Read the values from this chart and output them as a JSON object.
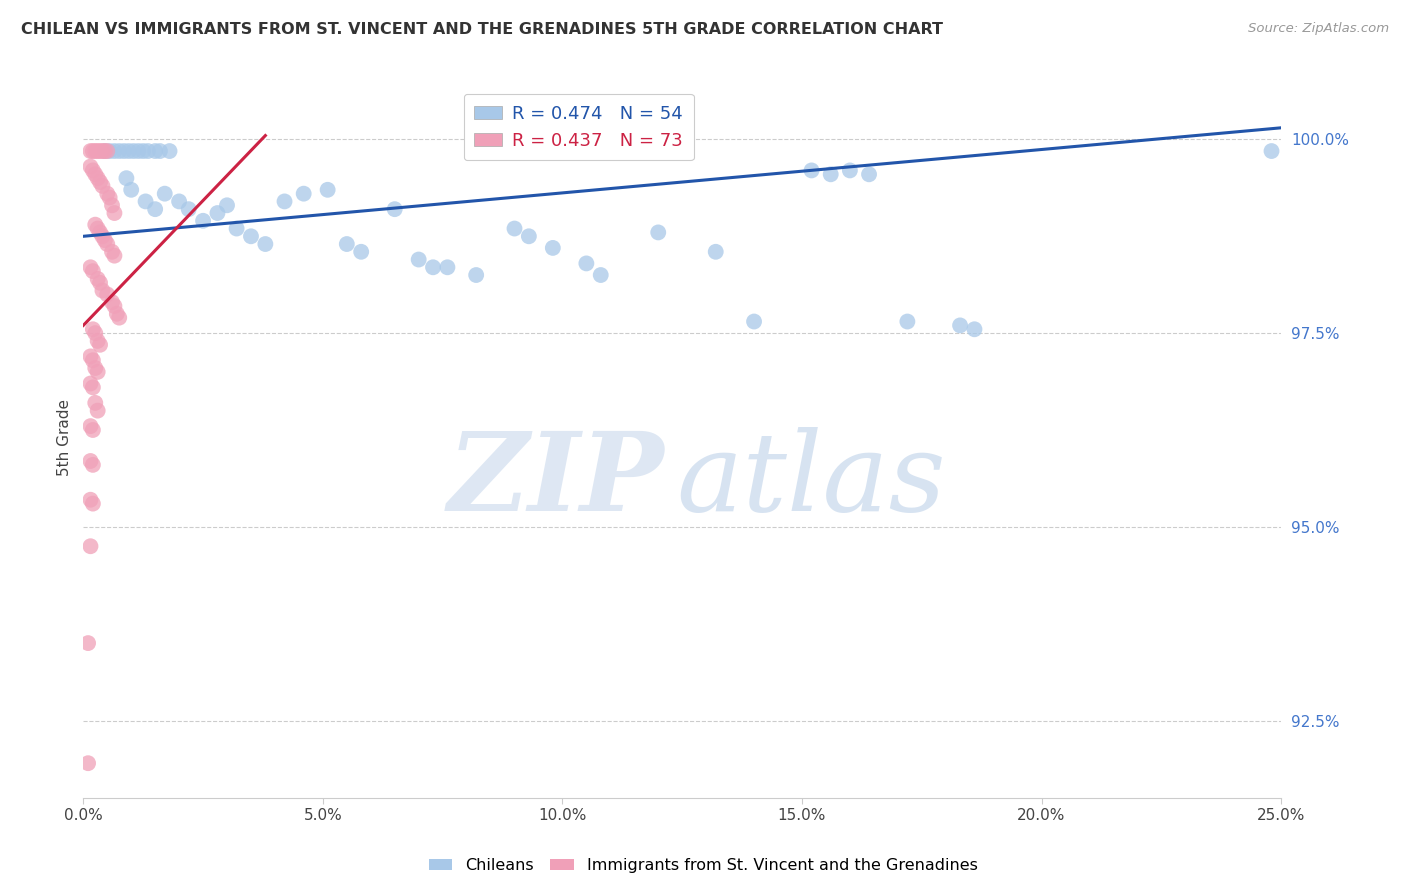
{
  "title": "CHILEAN VS IMMIGRANTS FROM ST. VINCENT AND THE GRENADINES 5TH GRADE CORRELATION CHART",
  "source": "Source: ZipAtlas.com",
  "ylabel": "5th Grade",
  "xlim": [
    0.0,
    25.0
  ],
  "ylim": [
    91.5,
    100.8
  ],
  "yticks": [
    92.5,
    95.0,
    97.5,
    100.0
  ],
  "xticks": [
    0.0,
    5.0,
    10.0,
    15.0,
    20.0,
    25.0
  ],
  "xtick_labels": [
    "0.0%",
    "5.0%",
    "10.0%",
    "15.0%",
    "20.0%",
    "25.0%"
  ],
  "ytick_labels": [
    "92.5%",
    "95.0%",
    "97.5%",
    "100.0%"
  ],
  "blue_r": 0.474,
  "blue_n": 54,
  "pink_r": 0.437,
  "pink_n": 73,
  "blue_color": "#a8c8e8",
  "pink_color": "#f0a0b8",
  "blue_line_color": "#2255aa",
  "pink_line_color": "#cc2244",
  "legend_label_blue": "Chileans",
  "legend_label_pink": "Immigrants from St. Vincent and the Grenadines",
  "blue_line": [
    [
      0.0,
      98.75
    ],
    [
      25.0,
      100.15
    ]
  ],
  "pink_line": [
    [
      0.0,
      97.6
    ],
    [
      3.8,
      100.05
    ]
  ],
  "blue_points": [
    [
      0.45,
      99.85
    ],
    [
      0.55,
      99.85
    ],
    [
      0.65,
      99.85
    ],
    [
      0.75,
      99.85
    ],
    [
      0.85,
      99.85
    ],
    [
      0.95,
      99.85
    ],
    [
      1.05,
      99.85
    ],
    [
      1.15,
      99.85
    ],
    [
      1.25,
      99.85
    ],
    [
      1.35,
      99.85
    ],
    [
      1.5,
      99.85
    ],
    [
      1.6,
      99.85
    ],
    [
      1.8,
      99.85
    ],
    [
      0.9,
      99.5
    ],
    [
      1.0,
      99.35
    ],
    [
      1.3,
      99.2
    ],
    [
      1.5,
      99.1
    ],
    [
      1.7,
      99.3
    ],
    [
      2.0,
      99.2
    ],
    [
      2.2,
      99.1
    ],
    [
      2.5,
      98.95
    ],
    [
      2.8,
      99.05
    ],
    [
      3.0,
      99.15
    ],
    [
      3.2,
      98.85
    ],
    [
      3.5,
      98.75
    ],
    [
      3.8,
      98.65
    ],
    [
      4.2,
      99.2
    ],
    [
      4.6,
      99.3
    ],
    [
      5.1,
      99.35
    ],
    [
      5.5,
      98.65
    ],
    [
      5.8,
      98.55
    ],
    [
      6.5,
      99.1
    ],
    [
      7.0,
      98.45
    ],
    [
      7.3,
      98.35
    ],
    [
      7.6,
      98.35
    ],
    [
      8.2,
      98.25
    ],
    [
      9.0,
      98.85
    ],
    [
      9.3,
      98.75
    ],
    [
      9.8,
      98.6
    ],
    [
      10.5,
      98.4
    ],
    [
      10.8,
      98.25
    ],
    [
      12.0,
      98.8
    ],
    [
      13.2,
      98.55
    ],
    [
      14.0,
      97.65
    ],
    [
      15.2,
      99.6
    ],
    [
      15.6,
      99.55
    ],
    [
      16.0,
      99.6
    ],
    [
      16.4,
      99.55
    ],
    [
      17.2,
      97.65
    ],
    [
      18.3,
      97.6
    ],
    [
      18.6,
      97.55
    ],
    [
      24.8,
      99.85
    ]
  ],
  "pink_points": [
    [
      0.15,
      99.85
    ],
    [
      0.2,
      99.85
    ],
    [
      0.25,
      99.85
    ],
    [
      0.3,
      99.85
    ],
    [
      0.35,
      99.85
    ],
    [
      0.4,
      99.85
    ],
    [
      0.45,
      99.85
    ],
    [
      0.5,
      99.85
    ],
    [
      0.15,
      99.65
    ],
    [
      0.2,
      99.6
    ],
    [
      0.25,
      99.55
    ],
    [
      0.3,
      99.5
    ],
    [
      0.35,
      99.45
    ],
    [
      0.4,
      99.4
    ],
    [
      0.5,
      99.3
    ],
    [
      0.55,
      99.25
    ],
    [
      0.6,
      99.15
    ],
    [
      0.65,
      99.05
    ],
    [
      0.25,
      98.9
    ],
    [
      0.3,
      98.85
    ],
    [
      0.35,
      98.8
    ],
    [
      0.4,
      98.75
    ],
    [
      0.45,
      98.7
    ],
    [
      0.5,
      98.65
    ],
    [
      0.6,
      98.55
    ],
    [
      0.65,
      98.5
    ],
    [
      0.15,
      98.35
    ],
    [
      0.2,
      98.3
    ],
    [
      0.3,
      98.2
    ],
    [
      0.35,
      98.15
    ],
    [
      0.4,
      98.05
    ],
    [
      0.5,
      98.0
    ],
    [
      0.6,
      97.9
    ],
    [
      0.65,
      97.85
    ],
    [
      0.7,
      97.75
    ],
    [
      0.75,
      97.7
    ],
    [
      0.2,
      97.55
    ],
    [
      0.25,
      97.5
    ],
    [
      0.3,
      97.4
    ],
    [
      0.35,
      97.35
    ],
    [
      0.15,
      97.2
    ],
    [
      0.2,
      97.15
    ],
    [
      0.25,
      97.05
    ],
    [
      0.3,
      97.0
    ],
    [
      0.15,
      96.85
    ],
    [
      0.2,
      96.8
    ],
    [
      0.25,
      96.6
    ],
    [
      0.3,
      96.5
    ],
    [
      0.15,
      96.3
    ],
    [
      0.2,
      96.25
    ],
    [
      0.15,
      95.85
    ],
    [
      0.2,
      95.8
    ],
    [
      0.15,
      95.35
    ],
    [
      0.2,
      95.3
    ],
    [
      0.15,
      94.75
    ],
    [
      0.1,
      93.5
    ],
    [
      0.1,
      91.95
    ]
  ]
}
